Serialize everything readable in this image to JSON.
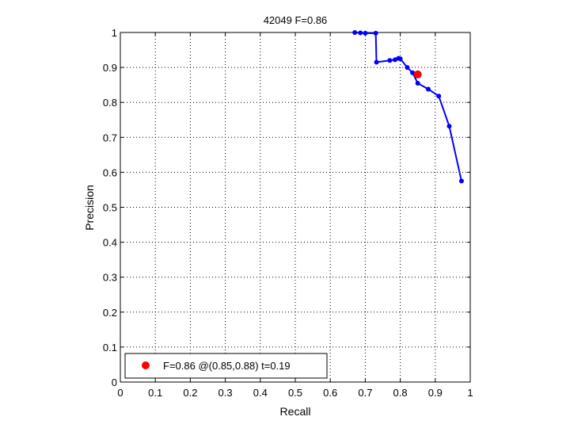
{
  "chart_data": {
    "type": "line",
    "title": "42049 F=0.86",
    "xlabel": "Recall",
    "ylabel": "Precision",
    "xlim": [
      0,
      1
    ],
    "ylim": [
      0,
      1
    ],
    "grid": true,
    "legend_position": "bottom-left",
    "x_ticks": [
      "0",
      "0.1",
      "0.2",
      "0.3",
      "0.4",
      "0.5",
      "0.6",
      "0.7",
      "0.8",
      "0.9",
      "1"
    ],
    "y_ticks": [
      "0",
      "0.1",
      "0.2",
      "0.3",
      "0.4",
      "0.5",
      "0.6",
      "0.7",
      "0.8",
      "0.9",
      "1"
    ],
    "series": [
      {
        "color": "#0000ff",
        "points": [
          [
            0.67,
            1.0
          ],
          [
            0.686,
            0.999
          ],
          [
            0.7,
            0.998
          ],
          [
            0.73,
            0.998
          ],
          [
            0.732,
            0.915
          ],
          [
            0.77,
            0.92
          ],
          [
            0.785,
            0.922
          ],
          [
            0.795,
            0.926
          ],
          [
            0.8,
            0.925
          ],
          [
            0.82,
            0.9
          ],
          [
            0.835,
            0.885
          ],
          [
            0.85,
            0.855
          ],
          [
            0.88,
            0.838
          ],
          [
            0.91,
            0.818
          ],
          [
            0.94,
            0.732
          ],
          [
            0.975,
            0.575
          ]
        ]
      }
    ],
    "highlight": {
      "color": "#ff0000",
      "x": 0.85,
      "y": 0.88,
      "label": "F=0.86 @(0.85,0.88) t=0.19"
    }
  }
}
